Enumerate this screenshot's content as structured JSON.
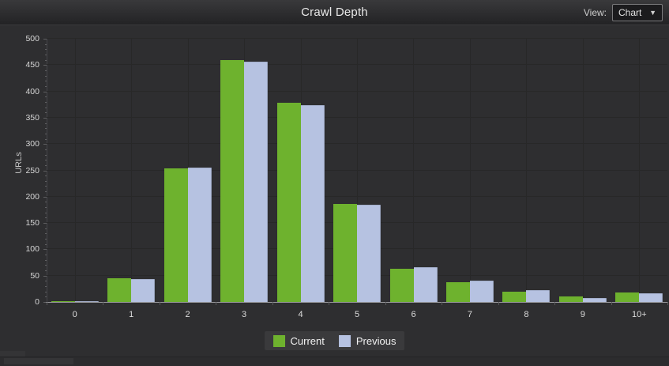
{
  "header": {
    "title": "Crawl Depth",
    "view_label": "View:",
    "view_value": "Chart"
  },
  "icons": {
    "chevron_down": "▼"
  },
  "chart_data": {
    "type": "bar",
    "title": "Crawl Depth",
    "categories": [
      "0",
      "1",
      "2",
      "3",
      "4",
      "5",
      "6",
      "7",
      "8",
      "9",
      "10+"
    ],
    "series": [
      {
        "name": "Current",
        "color": "#6eb22e",
        "values": [
          2,
          45,
          254,
          459,
          378,
          186,
          63,
          37,
          20,
          10,
          18
        ]
      },
      {
        "name": "Previous",
        "color": "#b6c2e1",
        "values": [
          2,
          44,
          256,
          457,
          374,
          185,
          66,
          40,
          23,
          8,
          16
        ]
      }
    ],
    "xlabel": "",
    "ylabel": "URLs",
    "ylim": [
      0,
      500
    ],
    "ytick_step": 50,
    "ytick_labels": [
      "0",
      "50",
      "100",
      "150",
      "200",
      "250",
      "300",
      "350",
      "400",
      "450",
      "500"
    ],
    "grid": true,
    "legend_position": "bottom"
  }
}
